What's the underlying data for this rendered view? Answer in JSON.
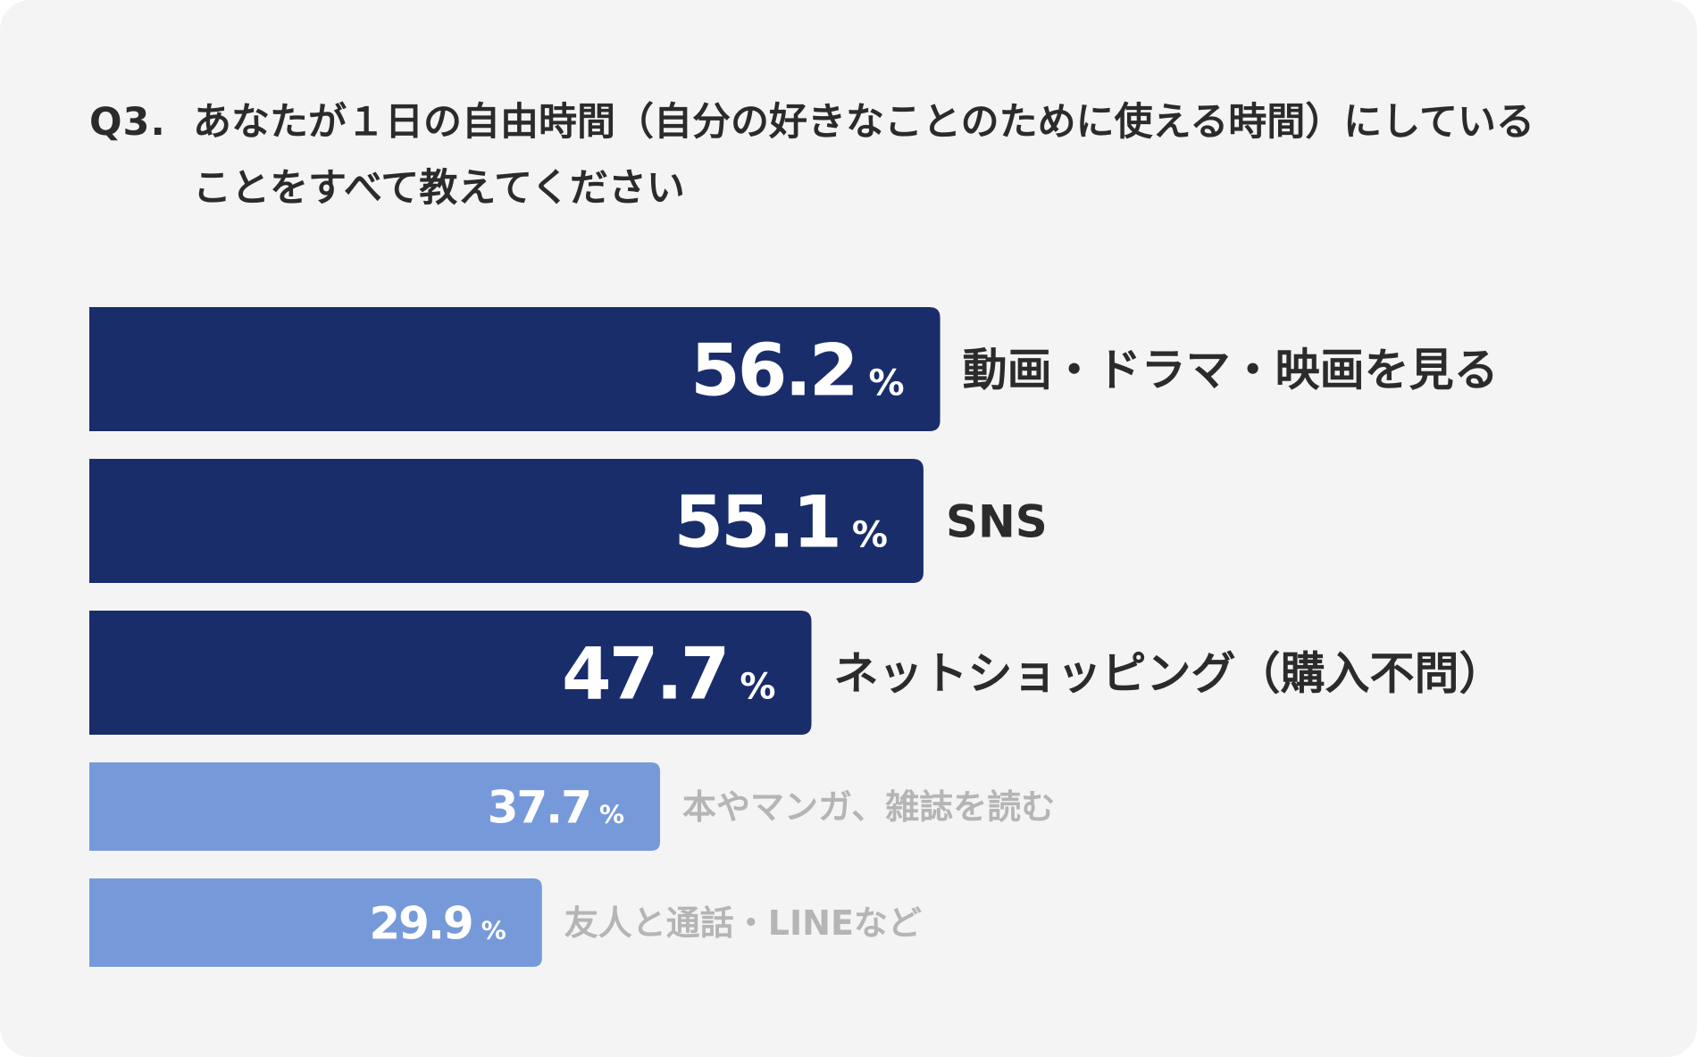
{
  "question": {
    "prefix": "Q3.",
    "text": "あなたが１日の自由時間（自分の好きなことのために使える時間）にしていることをすべて教えてください"
  },
  "colors": {
    "background": "#f4f4f4",
    "bar_primary": "#1a2d6b",
    "bar_secondary": "#769ad9",
    "label_primary": "#2b2b2b",
    "label_secondary": "#b5b5b5",
    "value_text": "#ffffff"
  },
  "chart_data": {
    "type": "bar",
    "orientation": "horizontal",
    "unit": "%",
    "xlim": [
      0,
      100
    ],
    "categories": [
      "動画・ドラマ・映画を見る",
      "SNS",
      "ネットショッピング（購入不問）",
      "本やマンガ、雑誌を読む",
      "友人と通話・LINEなど"
    ],
    "values": [
      56.2,
      55.1,
      47.7,
      37.7,
      29.9
    ],
    "value_labels": [
      "56.2",
      "55.1",
      "47.7",
      "37.7",
      "29.9"
    ],
    "highlighted": [
      true,
      true,
      true,
      false,
      false
    ]
  }
}
